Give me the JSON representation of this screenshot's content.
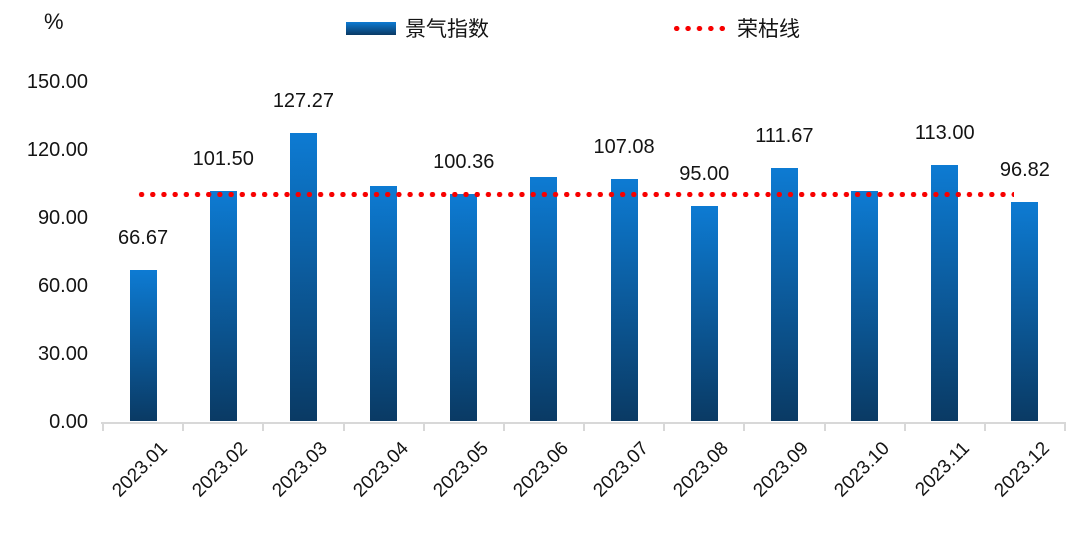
{
  "chart_data": {
    "type": "bar",
    "title": "",
    "ylabel": "%",
    "xlabel": "",
    "ylim": [
      0,
      150
    ],
    "ytick_values": [
      0,
      30,
      60,
      90,
      120,
      150
    ],
    "ytick_labels": [
      "0.00",
      "30.00",
      "60.00",
      "90.00",
      "120.00",
      "150.00"
    ],
    "grid": false,
    "legend_position": "top",
    "categories": [
      "2023.01",
      "2023.02",
      "2023.03",
      "2023.04",
      "2023.05",
      "2023.06",
      "2023.07",
      "2023.08",
      "2023.09",
      "2023.10",
      "2023.11",
      "2023.12"
    ],
    "series": [
      {
        "name": "景气指数",
        "type": "bar",
        "values": [
          66.67,
          101.5,
          127.27,
          104.0,
          100.36,
          107.8,
          107.08,
          95.0,
          111.67,
          101.8,
          113.0,
          96.82
        ],
        "data_labels": [
          "66.67",
          "101.50",
          "127.27",
          "",
          "100.36",
          "",
          "107.08",
          "95.00",
          "111.67",
          "",
          "113.00",
          "96.82"
        ]
      },
      {
        "name": "荣枯线",
        "type": "line",
        "line_style": "dotted",
        "value": 100
      }
    ],
    "colors": {
      "bar_gradient_top": "#0d7bd3",
      "bar_gradient_bottom": "#0a3a64",
      "reference_line": "#f70000",
      "text": "#141414",
      "axis": "#d8d8d8"
    }
  }
}
